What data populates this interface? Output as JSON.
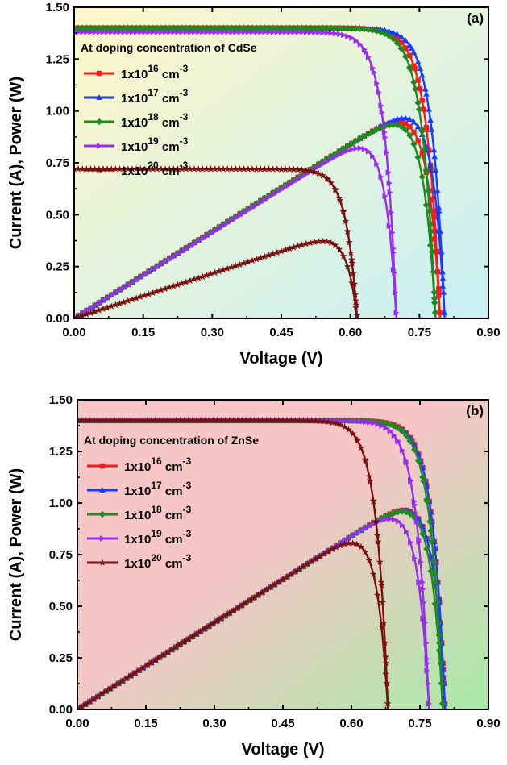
{
  "chart_data": [
    {
      "type": "line",
      "panel_label": "(a)",
      "xlabel": "Voltage (V)",
      "ylabel": "Current (A), Power (W)",
      "xlim": [
        0,
        0.9
      ],
      "ylim": [
        0,
        1.5
      ],
      "xticks": [
        "0.00",
        "0.15",
        "0.30",
        "0.45",
        "0.60",
        "0.75",
        "0.90"
      ],
      "yticks": [
        "0.00",
        "0.25",
        "0.50",
        "0.75",
        "1.00",
        "1.25",
        "1.50"
      ],
      "legend_title": "At doping concentration of CdSe",
      "legend_position": "top-left",
      "background": [
        "#fff6c8",
        "#c8f0f4"
      ],
      "series": [
        {
          "name": "1x10^16 cm^-3",
          "base": "1x10",
          "exp": "16",
          "unit": "cm",
          "unit_exp": "-3",
          "color": "#ff1a1a",
          "marker": "square",
          "Isc": 1.4,
          "Voc": 0.795,
          "n": 0.028
        },
        {
          "name": "1x10^17 cm^-3",
          "base": "1x10",
          "exp": "17",
          "unit": "cm",
          "unit_exp": "-3",
          "color": "#1a3cff",
          "marker": "triangle",
          "Isc": 1.4,
          "Voc": 0.805,
          "n": 0.027
        },
        {
          "name": "1x10^18 cm^-3",
          "base": "1x10",
          "exp": "18",
          "unit": "cm",
          "unit_exp": "-3",
          "color": "#1f8a1f",
          "marker": "diamond",
          "Isc": 1.4,
          "Voc": 0.785,
          "n": 0.028
        },
        {
          "name": "1x10^19 cm^-3",
          "base": "1x10",
          "exp": "19",
          "unit": "cm",
          "unit_exp": "-3",
          "color": "#9a2cf0",
          "marker": "tri-right",
          "Isc": 1.38,
          "Voc": 0.7,
          "n": 0.025
        },
        {
          "name": "1x10^20 cm^-3",
          "base": "1x10",
          "exp": "20",
          "unit": "cm",
          "unit_exp": "-3",
          "color": "#7a0f0f",
          "marker": "star",
          "Isc": 0.72,
          "Voc": 0.615,
          "n": 0.024
        }
      ]
    },
    {
      "type": "line",
      "panel_label": "(b)",
      "xlabel": "Voltage (V)",
      "ylabel": "Current (A), Power (W)",
      "xlim": [
        0,
        0.9
      ],
      "ylim": [
        0,
        1.5
      ],
      "xticks": [
        "0.00",
        "0.15",
        "0.30",
        "0.45",
        "0.60",
        "0.75",
        "0.90"
      ],
      "yticks": [
        "0.00",
        "0.25",
        "0.50",
        "0.75",
        "1.00",
        "1.25",
        "1.50"
      ],
      "legend_title": "At doping concentration of ZnSe",
      "legend_position": "top-left",
      "background": [
        "#a8eaa8",
        "#f6c6c6"
      ],
      "series": [
        {
          "name": "1x10^16 cm^-3",
          "base": "1x10",
          "exp": "16",
          "unit": "cm",
          "unit_exp": "-3",
          "color": "#ff1a1a",
          "marker": "square",
          "Isc": 1.4,
          "Voc": 0.805,
          "n": 0.027
        },
        {
          "name": "1x10^17 cm^-3",
          "base": "1x10",
          "exp": "17",
          "unit": "cm",
          "unit_exp": "-3",
          "color": "#1a3cff",
          "marker": "triangle",
          "Isc": 1.4,
          "Voc": 0.805,
          "n": 0.027
        },
        {
          "name": "1x10^18 cm^-3",
          "base": "1x10",
          "exp": "18",
          "unit": "cm",
          "unit_exp": "-3",
          "color": "#1f8a1f",
          "marker": "diamond",
          "Isc": 1.4,
          "Voc": 0.8,
          "n": 0.027
        },
        {
          "name": "1x10^19 cm^-3",
          "base": "1x10",
          "exp": "19",
          "unit": "cm",
          "unit_exp": "-3",
          "color": "#9a2cf0",
          "marker": "tri-right",
          "Isc": 1.4,
          "Voc": 0.77,
          "n": 0.026
        },
        {
          "name": "1x10^20 cm^-3",
          "base": "1x10",
          "exp": "20",
          "unit": "cm",
          "unit_exp": "-3",
          "color": "#7a0f0f",
          "marker": "star",
          "Isc": 1.4,
          "Voc": 0.68,
          "n": 0.025
        }
      ]
    }
  ]
}
